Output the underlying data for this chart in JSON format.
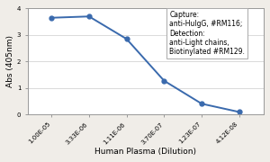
{
  "x_values": [
    1e-05,
    3.33e-06,
    1.11e-06,
    3.7e-07,
    1.23e-07,
    4.12e-08
  ],
  "x_labels": [
    "1.00E-05",
    "3.33E-06",
    "1.11E-06",
    "3.70E-07",
    "1.23E-07",
    "4.12E-08"
  ],
  "y_values": [
    3.65,
    3.7,
    2.85,
    1.27,
    0.4,
    0.09
  ],
  "ylim": [
    0,
    4.0
  ],
  "xlim_left": 2e-05,
  "xlim_right": 2e-08,
  "ylabel": "Abs (405nm)",
  "xlabel": "Human Plasma (Dilution)",
  "line_color": "#3a6aad",
  "marker": "o",
  "marker_size": 3.5,
  "line_width": 1.4,
  "annotation_lines": [
    "Capture:",
    "anti-HuIgG, #RM116;",
    "Detection:",
    "anti-Light chains,",
    "Biotinylated #RM129."
  ],
  "background_color": "#f0ede8",
  "plot_bg_color": "#ffffff",
  "annotation_box_color": "#ffffff",
  "annotation_fontsize": 5.5,
  "axis_fontsize": 6.5,
  "tick_fontsize": 5.0,
  "yticks": [
    0,
    1,
    2,
    3,
    4
  ]
}
